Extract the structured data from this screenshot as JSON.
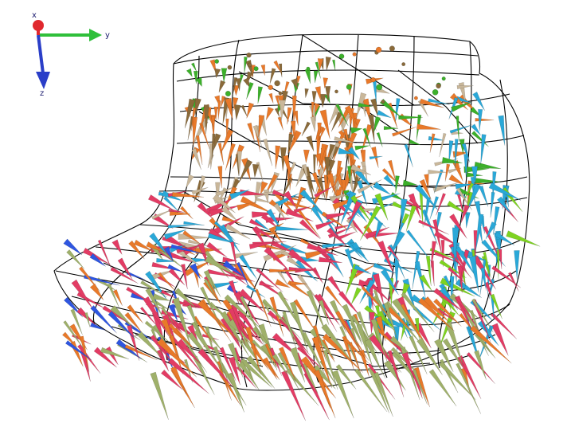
{
  "axis_triad": {
    "x_label": "x",
    "y_label": "y",
    "z_label": "z",
    "colors": {
      "x": "#e0282e",
      "y": "#2fbf3a",
      "z": "#2a3ec8",
      "label": "#1a1a6e"
    }
  },
  "mesh": {
    "color": "#000000",
    "background": "#ffffff"
  },
  "arrow_palette": [
    "#3cb02a",
    "#e8792a",
    "#c9b79a",
    "#e23c64",
    "#2aa8d8",
    "#7ed321",
    "#2f56e0",
    "#9fb06a",
    "#8a6a3a"
  ]
}
